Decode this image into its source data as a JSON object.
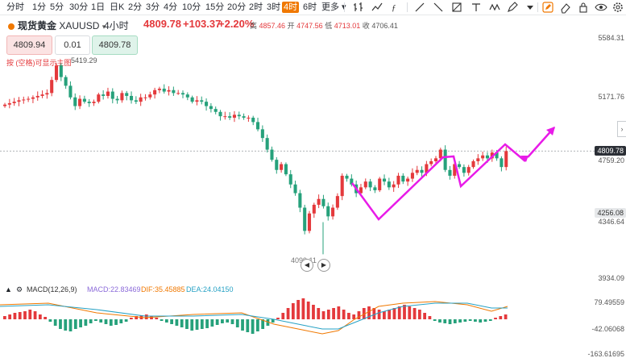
{
  "timeframes": [
    "分时",
    "1分",
    "5分",
    "30分",
    "1日",
    "日K",
    "2分",
    "3分",
    "4分",
    "10分",
    "15分",
    "20分",
    "2时",
    "3时",
    "4时",
    "6时"
  ],
  "active_timeframe": "4时",
  "more_label": "更多",
  "instrument": {
    "name": "现货黄金",
    "code": "XAUUSD",
    "period": "4小时"
  },
  "quote": {
    "price": "4809.78",
    "change": "+103.37",
    "change_pct": "+2.20%"
  },
  "ohlc": {
    "high_label": "高",
    "high": "4857.46",
    "open_label": "开",
    "open": "4747.56",
    "low_label": "低",
    "low": "4713.01",
    "close_label": "收",
    "close": "4706.41"
  },
  "trade": {
    "sell_price": "4809.94",
    "quantity": "0.01",
    "buy_price": "4809.78"
  },
  "hint_text": "按 (空格)可显示主图",
  "hint_value": "5419.29",
  "price_axis": [
    "5584.31",
    "5171.76",
    "4759.20",
    "4346.64",
    "3934.09"
  ],
  "current_price_tag": "4809.78",
  "gray_price_tag": "4256.08",
  "low_label": "4099.11",
  "macd": {
    "label": "MACD(12,26,9)",
    "macd": "MACD:22.83469",
    "dif": "DIF:35.45885",
    "dea": "DEA:24.04150"
  },
  "macd_axis": [
    "79.49559",
    "-42.06068",
    "-163.61695"
  ],
  "colors": {
    "up": "#e4393c",
    "down": "#26a17b",
    "accent": "#f07800",
    "drawing": "#e81be8"
  },
  "chart_data": {
    "type": "candlestick",
    "ylim": [
      3934.09,
      5584.31
    ],
    "close_series": [
      5130,
      5140,
      5150,
      5160,
      5165,
      5170,
      5180,
      5190,
      5200,
      5210,
      5300,
      5400,
      5320,
      5260,
      5180,
      5120,
      5170,
      5150,
      5140,
      5150,
      5200,
      5190,
      5220,
      5170,
      5160,
      5210,
      5190,
      5160,
      5150,
      5180,
      5180,
      5200,
      5230,
      5240,
      5220,
      5230,
      5210,
      5210,
      5200,
      5180,
      5150,
      5160,
      5150,
      5120,
      5100,
      5080,
      5050,
      5050,
      5040,
      5060,
      5050,
      5040,
      5040,
      5010,
      4960,
      4900,
      4820,
      4750,
      4680,
      4720,
      4650,
      4580,
      4520,
      4420,
      4260,
      4380,
      4440,
      4480,
      4430,
      4360,
      4420,
      4500,
      4640,
      4620,
      4580,
      4520,
      4560,
      4600,
      4560,
      4540,
      4620,
      4600,
      4560,
      4580,
      4640,
      4600,
      4620,
      4660,
      4680,
      4660,
      4720,
      4740,
      4760,
      4820,
      4680,
      4640,
      4720,
      4700,
      4660,
      4700,
      4740,
      4760,
      4780,
      4760,
      4800,
      4760,
      4700,
      4810
    ]
  }
}
